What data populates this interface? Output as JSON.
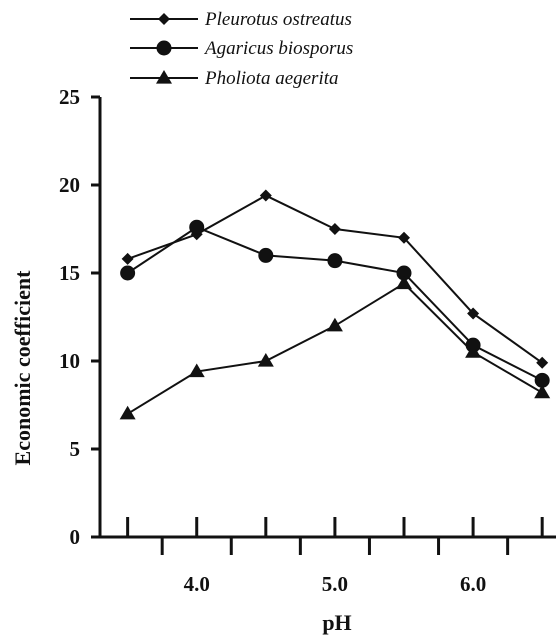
{
  "chart_data": {
    "type": "line",
    "xlabel": "pH",
    "ylabel": "Economic coefficient",
    "xlim": [
      3.3,
      6.6
    ],
    "ylim": [
      0,
      25
    ],
    "x_ticks": [
      3.5,
      4.0,
      4.5,
      5.0,
      5.5,
      6.0,
      6.5
    ],
    "x_tick_labels": [
      "",
      "4.0",
      "",
      "5.0",
      "",
      "6.0",
      ""
    ],
    "y_ticks": [
      0,
      5,
      10,
      15,
      20,
      25
    ],
    "y_tick_labels": [
      "0",
      "5",
      "10",
      "15",
      "20",
      "25"
    ],
    "legend_position": "top",
    "grid": false,
    "x": [
      3.5,
      4.0,
      4.5,
      5.0,
      5.5,
      6.0,
      6.5
    ],
    "series": [
      {
        "name": "Pleurotus ostreatus",
        "marker": "diamond",
        "values": [
          15.8,
          17.2,
          19.4,
          17.5,
          17.0,
          12.7,
          9.9
        ]
      },
      {
        "name": "Agaricus biosporus",
        "marker": "circle",
        "values": [
          15.0,
          17.6,
          16.0,
          15.7,
          15.0,
          10.9,
          8.9
        ]
      },
      {
        "name": "Pholiota aegerita",
        "marker": "triangle",
        "values": [
          7.0,
          9.4,
          10.0,
          12.0,
          14.4,
          10.5,
          8.2
        ]
      }
    ]
  }
}
